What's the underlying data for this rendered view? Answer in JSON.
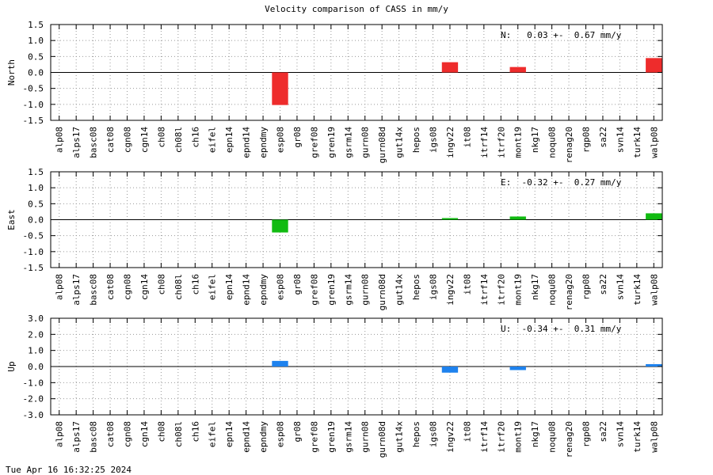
{
  "title": "Velocity comparison of CASS in mm/y",
  "footer_timestamp": "Tue Apr 16 16:32:25 2024",
  "chart_data": [
    {
      "type": "bar",
      "ylabel": "North",
      "ylim": [
        -1.5,
        1.5
      ],
      "yticks": [
        "1.5",
        "1.0",
        "0.5",
        "0.0",
        "-0.5",
        "-1.0",
        "-1.5"
      ],
      "ytick_values": [
        1.5,
        1.0,
        0.5,
        0.0,
        -0.5,
        -1.0,
        -1.5
      ],
      "grid": true,
      "bar_color": "#ee2c2c",
      "stats_text": "N:   0.03 +-  0.67 mm/y",
      "categories": [
        "alp08",
        "alps17",
        "basc08",
        "cat08",
        "cgn08",
        "cgn14",
        "ch08",
        "ch08l",
        "ch16",
        "eifel",
        "epn14",
        "epnd14",
        "epndmy",
        "esp08",
        "gr08",
        "gref08",
        "gren19",
        "gsrm14",
        "gurn08",
        "gurn08d",
        "gut14x",
        "hepos",
        "igs08",
        "ingv22",
        "it08",
        "itrf14",
        "itrf20",
        "mont19",
        "nkg17",
        "noqu08",
        "renag20",
        "rgp08",
        "sa22",
        "svn14",
        "turk14",
        "walp08"
      ],
      "values": [
        0,
        0,
        0,
        0,
        0,
        0,
        0,
        0,
        0,
        0,
        0,
        0,
        0,
        -1.02,
        0,
        0,
        0,
        0,
        0,
        0,
        0,
        0,
        0,
        0.32,
        0,
        0,
        0,
        0.17,
        0,
        0,
        0,
        0,
        0,
        0,
        0,
        0.45
      ]
    },
    {
      "type": "bar",
      "ylabel": "East",
      "ylim": [
        -1.5,
        1.5
      ],
      "yticks": [
        "1.5",
        "1.0",
        "0.5",
        "0.0",
        "-0.5",
        "-1.0",
        "-1.5"
      ],
      "ytick_values": [
        1.5,
        1.0,
        0.5,
        0.0,
        -0.5,
        -1.0,
        -1.5
      ],
      "grid": true,
      "bar_color": "#11bb11",
      "stats_text": "E:  -0.32 +-  0.27 mm/y",
      "categories": [
        "alp08",
        "alps17",
        "basc08",
        "cat08",
        "cgn08",
        "cgn14",
        "ch08",
        "ch08l",
        "ch16",
        "eifel",
        "epn14",
        "epnd14",
        "epndmy",
        "esp08",
        "gr08",
        "gref08",
        "gren19",
        "gsrm14",
        "gurn08",
        "gurn08d",
        "gut14x",
        "hepos",
        "igs08",
        "ingv22",
        "it08",
        "itrf14",
        "itrf20",
        "mont19",
        "nkg17",
        "noqu08",
        "renag20",
        "rgp08",
        "sa22",
        "svn14",
        "turk14",
        "walp08"
      ],
      "values": [
        0,
        0,
        0,
        0,
        0,
        0,
        0,
        0,
        0,
        0,
        0,
        0,
        0,
        -0.4,
        0,
        0,
        0,
        0,
        0,
        0,
        0,
        0,
        0,
        0.05,
        0,
        0,
        0,
        0.1,
        0,
        0,
        0,
        0,
        0,
        0,
        0,
        0.2
      ]
    },
    {
      "type": "bar",
      "ylabel": "Up",
      "ylim": [
        -3.0,
        3.0
      ],
      "yticks": [
        "3.0",
        "2.0",
        "1.0",
        "0.0",
        "-1.0",
        "-2.0",
        "-3.0"
      ],
      "ytick_values": [
        3.0,
        2.0,
        1.0,
        0.0,
        -1.0,
        -2.0,
        -3.0
      ],
      "grid": true,
      "bar_color": "#1e82ee",
      "stats_text": "U:  -0.34 +-  0.31 mm/y",
      "categories": [
        "alp08",
        "alps17",
        "basc08",
        "cat08",
        "cgn08",
        "cgn14",
        "ch08",
        "ch08l",
        "ch16",
        "eifel",
        "epn14",
        "epnd14",
        "epndmy",
        "esp08",
        "gr08",
        "gref08",
        "gren19",
        "gsrm14",
        "gurn08",
        "gurn08d",
        "gut14x",
        "hepos",
        "igs08",
        "ingv22",
        "it08",
        "itrf14",
        "itrf20",
        "mont19",
        "nkg17",
        "noqu08",
        "renag20",
        "rgp08",
        "sa22",
        "svn14",
        "turk14",
        "walp08"
      ],
      "values": [
        0,
        0,
        0,
        0,
        0,
        0,
        0,
        0,
        0,
        0,
        0,
        0,
        0,
        0.35,
        0,
        0,
        0,
        0,
        0,
        0,
        0,
        0,
        0,
        -0.38,
        0,
        0,
        0,
        -0.22,
        0,
        0,
        0,
        0,
        0,
        0,
        0,
        0.15
      ]
    }
  ]
}
